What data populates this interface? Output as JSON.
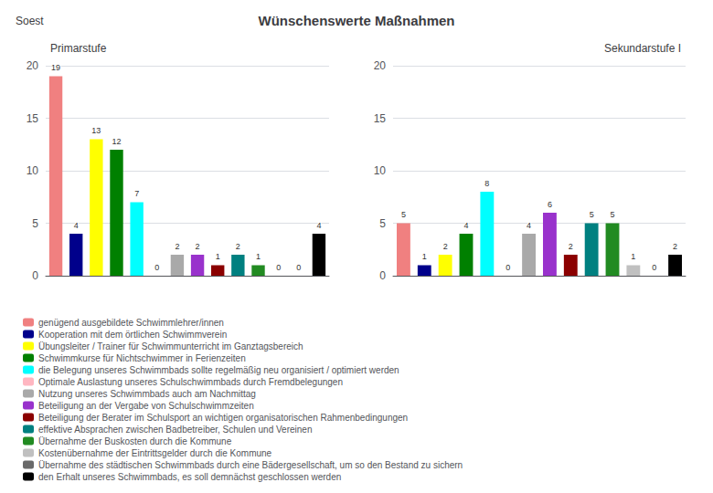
{
  "title": "Wünschenswerte Maßnahmen",
  "annotations": [
    "Soest"
  ],
  "chart_data": [
    {
      "type": "bar",
      "title": "Primarstufe",
      "categories": [
        "genügend ausgebildete Schwimmlehrer/innen",
        "Kooperation mit dem örtlichen Schwimmverein",
        "Übungsleiter / Trainer für Schwimmunterricht im Ganztagsbereich",
        "Schwimmkurse für Nichtschwimmer in Ferienzeiten",
        "die Belegung unseres Schwimmbads sollte regelmäßig neu organisiert / optimiert werden",
        "Optimale Auslastung unseres Schulschwimmbads durch Fremdbelegungen",
        "Nutzung unseres Schwimmbads auch am Nachmittag",
        "Beteiligung an der Vergabe von Schulschwimmzeiten",
        "Beteiligung der Berater im Schulsport an wichtigen organisatorischen Rahmenbedingungen",
        "effektive Absprachen zwischen Badbetreiber, Schulen und Vereinen",
        "Übernahme der Buskosten durch die Kommune",
        "Kostenübernahme der Eintrittsgelder durch die Kommune",
        "Übernahme des städtischen Schwimmbads durch eine Bädergesellschaft, um so den Bestand zu sichern",
        "den Erhalt unseres Schwimmbads, es soll demnächst geschlossen werden"
      ],
      "values": [
        19,
        4,
        13,
        12,
        7,
        0,
        2,
        2,
        1,
        2,
        1,
        0,
        0,
        4
      ],
      "colors": [
        "#F08080",
        "#00008B",
        "#FFFF00",
        "#008000",
        "#00FFFF",
        "#FFB6C1",
        "#A9A9A9",
        "#9932CC",
        "#8B0000",
        "#008080",
        "#228B22",
        "#C0C0C0",
        "#696969",
        "#000000"
      ],
      "ylim": [
        0,
        20
      ],
      "yticks": [
        0,
        5,
        10,
        15,
        20
      ],
      "grid": true,
      "data_labels": true,
      "tick_labels": "y",
      "legend": "lower left"
    },
    {
      "type": "bar",
      "title": "Sekundarstufe I",
      "categories": [
        "genügend ausgebildete Schwimmlehrer/innen",
        "Kooperation mit dem örtlichen Schwimmverein",
        "Übungsleiter / Trainer für Schwimmunterricht im Ganztagsbereich",
        "Schwimmkurse für Nichtschwimmer in Ferienzeiten",
        "die Belegung unseres Schwimmbads sollte regelmäßig neu organisiert / optimiert werden",
        "Optimale Auslastung unseres Schulschwimmbads durch Fremdbelegungen",
        "Nutzung unseres Schwimmbads auch am Nachmittag",
        "Beteiligung an der Vergabe von Schulschwimmzeiten",
        "Beteiligung der Berater im Schulsport an wichtigen organisatorischen Rahmenbedingungen",
        "effektive Absprachen zwischen Badbetreiber, Schulen und Vereinen",
        "Übernahme der Buskosten durch die Kommune",
        "Kostenübernahme der Eintrittsgelder durch die Kommune",
        "Übernahme des städtischen Schwimmbads durch eine Bädergesellschaft, um so den Bestand zu sichern",
        "den Erhalt unseres Schwimmbads, es soll demnächst geschlossen werden"
      ],
      "values": [
        5,
        1,
        2,
        4,
        8,
        0,
        4,
        6,
        2,
        5,
        5,
        1,
        0,
        2
      ],
      "colors": [
        "#F08080",
        "#00008B",
        "#FFFF00",
        "#008000",
        "#00FFFF",
        "#FFB6C1",
        "#A9A9A9",
        "#9932CC",
        "#8B0000",
        "#008080",
        "#228B22",
        "#C0C0C0",
        "#696969",
        "#000000"
      ],
      "ylim": [
        0,
        20
      ],
      "yticks": [
        0,
        5,
        10,
        15,
        20
      ],
      "grid": true,
      "data_labels": true,
      "tick_labels": "y",
      "legend": "lower left"
    }
  ]
}
